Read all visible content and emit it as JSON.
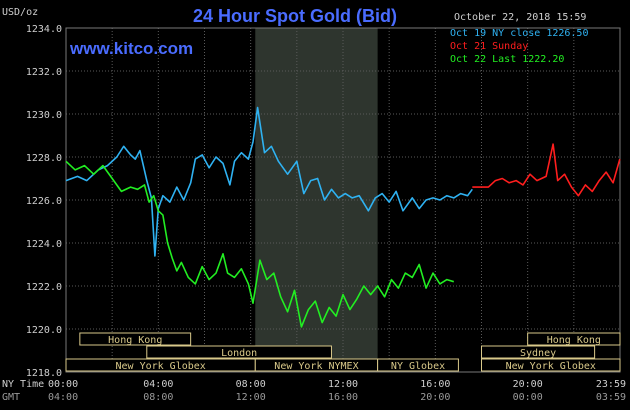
{
  "header": {
    "unit": "USD/oz",
    "title": "24 Hour Spot Gold (Bid)",
    "timestamp": "October 22, 2018 15:59",
    "site": "www.kitco.com"
  },
  "axis": {
    "y_ticks": [
      "1234.0",
      "1232.0",
      "1230.0",
      "1228.0",
      "1226.0",
      "1224.0",
      "1222.0",
      "1220.0",
      "1218.0"
    ],
    "ny_time_label": "NY Time",
    "gmt_label": "GMT",
    "ny_ticks": [
      "00:00",
      "04:00",
      "08:00",
      "12:00",
      "16:00",
      "20:00",
      "23:59"
    ],
    "gmt_ticks": [
      "04:00",
      "08:00",
      "12:00",
      "16:00",
      "20:00",
      "00:00",
      "03:59"
    ]
  },
  "markets": {
    "hong_kong": "Hong Kong",
    "london": "London",
    "new_york_globex": "New York Globex",
    "new_york_nymex": "New York NYMEX",
    "ny_globex": "NY Globex",
    "sydney": "Sydney"
  },
  "colors": {
    "background": "#000000",
    "grid": "#5a5a5a",
    "shade": "#2e352e",
    "axis_text": "#cfcfcf",
    "title": "#4a6cff",
    "oct19": "#2fb2f2",
    "oct21": "#ff1e1e",
    "oct22": "#22ee22",
    "market_box": "#d9c98a"
  },
  "chart_data": {
    "type": "line",
    "title": "24 Hour Spot Gold (Bid)",
    "ylabel": "USD/oz",
    "xlabel": "NY Time",
    "ylim": [
      1218,
      1234
    ],
    "xlim_hours": [
      0,
      24
    ],
    "grid": true,
    "legend_position": "top-right",
    "series": [
      {
        "name": "Oct 19 NY close 1226.50",
        "color": "#2fb2f2",
        "x_hours": [
          0.0,
          0.5,
          0.9,
          1.4,
          1.8,
          2.2,
          2.5,
          2.8,
          3.0,
          3.2,
          3.5,
          3.7,
          3.85,
          4.0,
          4.2,
          4.5,
          4.8,
          5.1,
          5.4,
          5.6,
          5.9,
          6.2,
          6.5,
          6.8,
          7.1,
          7.3,
          7.6,
          7.9,
          8.1,
          8.3,
          8.6,
          8.9,
          9.2,
          9.6,
          10.0,
          10.3,
          10.6,
          10.9,
          11.2,
          11.5,
          11.8,
          12.1,
          12.4,
          12.7,
          13.1,
          13.4,
          13.7,
          14.0,
          14.3,
          14.6,
          15.0,
          15.3,
          15.6,
          15.9,
          16.2,
          16.5,
          16.8,
          17.1,
          17.4,
          17.6
        ],
        "values": [
          1226.9,
          1227.1,
          1226.9,
          1227.4,
          1227.6,
          1228.0,
          1228.5,
          1228.1,
          1227.9,
          1228.3,
          1226.9,
          1226.1,
          1223.4,
          1225.6,
          1226.2,
          1225.9,
          1226.6,
          1226.0,
          1226.8,
          1227.9,
          1228.1,
          1227.5,
          1228.0,
          1227.7,
          1226.7,
          1227.8,
          1228.2,
          1227.9,
          1228.7,
          1230.3,
          1228.2,
          1228.5,
          1227.8,
          1227.2,
          1227.8,
          1226.3,
          1226.9,
          1227.0,
          1226.0,
          1226.5,
          1226.1,
          1226.3,
          1226.1,
          1226.2,
          1225.5,
          1226.1,
          1226.3,
          1225.9,
          1226.4,
          1225.5,
          1226.1,
          1225.6,
          1226.0,
          1226.1,
          1226.0,
          1226.2,
          1226.1,
          1226.3,
          1226.2,
          1226.5
        ]
      },
      {
        "name": "Oct 21 Sunday",
        "color": "#ff1e1e",
        "x_hours": [
          17.6,
          18.0,
          18.3,
          18.6,
          18.9,
          19.2,
          19.5,
          19.8,
          20.1,
          20.4,
          20.8,
          21.1,
          21.3,
          21.6,
          21.9,
          22.2,
          22.5,
          22.8,
          23.1,
          23.4,
          23.7,
          23.99
        ],
        "values": [
          1226.6,
          1226.6,
          1226.6,
          1226.9,
          1227.0,
          1226.8,
          1226.9,
          1226.7,
          1227.2,
          1226.9,
          1227.1,
          1228.6,
          1226.9,
          1227.2,
          1226.6,
          1226.2,
          1226.7,
          1226.4,
          1226.9,
          1227.3,
          1226.8,
          1227.9
        ]
      },
      {
        "name": "Oct 22 Last 1222.20",
        "color": "#22ee22",
        "x_hours": [
          0.0,
          0.4,
          0.8,
          1.2,
          1.6,
          2.0,
          2.4,
          2.8,
          3.1,
          3.4,
          3.6,
          3.8,
          4.0,
          4.2,
          4.4,
          4.6,
          4.8,
          5.0,
          5.3,
          5.6,
          5.9,
          6.2,
          6.5,
          6.8,
          7.0,
          7.3,
          7.6,
          7.9,
          8.1,
          8.4,
          8.7,
          9.0,
          9.3,
          9.6,
          9.9,
          10.2,
          10.5,
          10.8,
          11.1,
          11.4,
          11.7,
          12.0,
          12.3,
          12.6,
          12.9,
          13.2,
          13.5,
          13.8,
          14.1,
          14.4,
          14.7,
          15.0,
          15.3,
          15.6,
          15.9,
          16.2,
          16.5,
          16.8
        ],
        "values": [
          1227.8,
          1227.4,
          1227.6,
          1227.2,
          1227.6,
          1227.0,
          1226.4,
          1226.6,
          1226.5,
          1226.7,
          1225.9,
          1226.2,
          1225.5,
          1225.3,
          1224.0,
          1223.3,
          1222.7,
          1223.1,
          1222.4,
          1222.1,
          1222.9,
          1222.3,
          1222.6,
          1223.5,
          1222.6,
          1222.4,
          1222.8,
          1222.1,
          1221.2,
          1223.2,
          1222.3,
          1222.6,
          1221.5,
          1220.8,
          1221.8,
          1220.1,
          1220.9,
          1221.3,
          1220.3,
          1221.0,
          1220.6,
          1221.6,
          1220.9,
          1221.4,
          1222.0,
          1221.6,
          1222.0,
          1221.5,
          1222.3,
          1221.9,
          1222.6,
          1222.4,
          1223.0,
          1221.9,
          1222.6,
          1222.1,
          1222.3,
          1222.2
        ]
      }
    ]
  }
}
